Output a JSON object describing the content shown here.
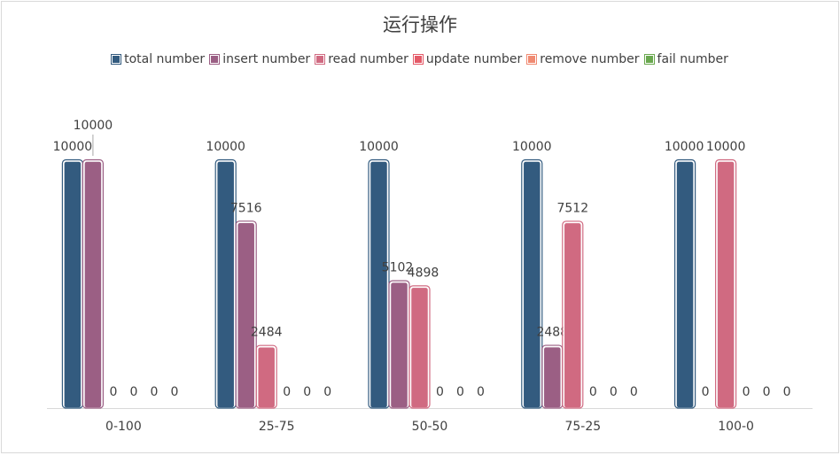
{
  "chart_data": {
    "type": "bar",
    "title": "运行操作",
    "categories": [
      "0-100",
      "25-75",
      "50-50",
      "75-25",
      "100-0"
    ],
    "series": [
      {
        "name": "total number",
        "color": "#335b7f",
        "values": [
          10000,
          10000,
          10000,
          10000,
          10000
        ]
      },
      {
        "name": "insert number",
        "color": "#9b5f84",
        "values": [
          10000,
          7516,
          5102,
          2488,
          0
        ]
      },
      {
        "name": "read number",
        "color": "#d06a81",
        "values": [
          0,
          2484,
          4898,
          7512,
          10000
        ]
      },
      {
        "name": "update number",
        "color": "#e45a68",
        "values": [
          0,
          0,
          0,
          0,
          0
        ]
      },
      {
        "name": "remove number",
        "color": "#f08a72",
        "values": [
          0,
          0,
          0,
          0,
          0
        ]
      },
      {
        "name": "fail number",
        "color": "#6aa84f",
        "values": [
          0,
          0,
          0,
          0,
          0
        ]
      }
    ],
    "ylim": [
      0,
      11500
    ],
    "legend_position": "top",
    "grid": false,
    "data_labels": true
  }
}
